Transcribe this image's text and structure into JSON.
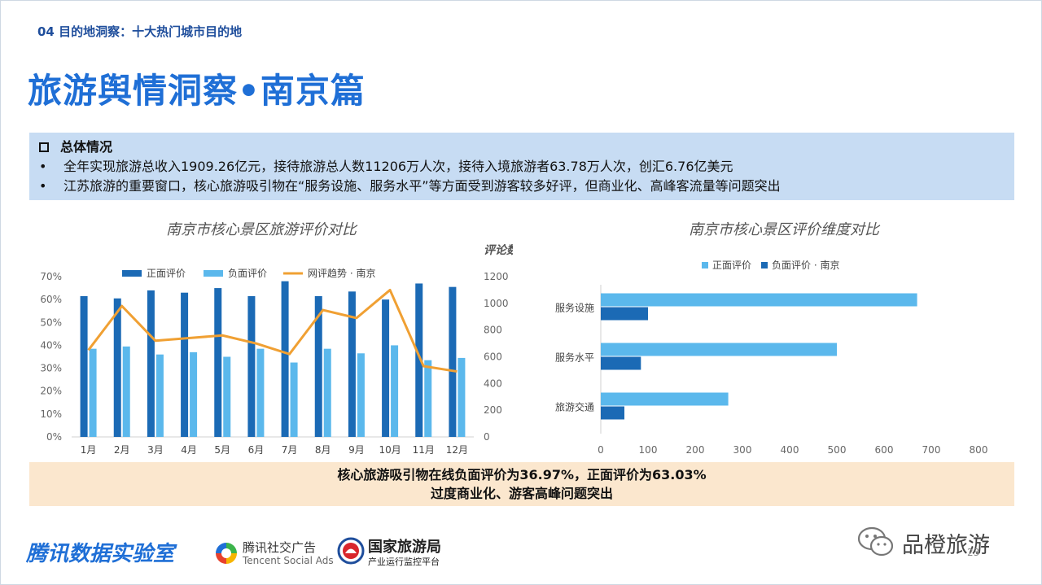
{
  "header": {
    "section_label": "04 目的地洞察：十大热门城市目的地",
    "title": "旅游舆情洞察•南京篇"
  },
  "summary": {
    "heading": "总体情况",
    "bullets": [
      "全年实现旅游总收入1909.26亿元，接待旅游总人数11206万人次，接待入境旅游者63.78万人次，创汇6.76亿美元",
      "江苏旅游的重要窗口，核心旅游吸引物在“服务设施、服务水平”等方面受到游客较多好评，但商业化、高峰客流量等问题突出"
    ]
  },
  "conclusion": {
    "line1": "核心旅游吸引物在线负面评价为36.97%，正面评价为63.03%",
    "line2": "过度商业化、游客高峰问题突出"
  },
  "footer": {
    "brand": "腾讯数据实验室",
    "tsa_cn": "腾讯社交广告",
    "tsa_en": "Tencent Social Ads",
    "cnta_cn": "国家旅游局",
    "cnta_sub": "产业运行监控平台",
    "wechat_name": "品橙旅游",
    "page_number": "23"
  },
  "colors": {
    "positive": "#1b6ab5",
    "negative": "#5bb8ec",
    "trend": "#f0a033",
    "bar_positive_h": "#5bb8ec",
    "bar_negative_h": "#1b6ab5"
  },
  "chart_data": [
    {
      "type": "bar",
      "title": "南京市核心景区旅游评价对比",
      "categories": [
        "1月",
        "2月",
        "3月",
        "4月",
        "5月",
        "6月",
        "7月",
        "8月",
        "9月",
        "10月",
        "11月",
        "12月"
      ],
      "series": [
        {
          "name": "正面评价",
          "axis": "left",
          "values": [
            61.5,
            60.5,
            64,
            63,
            65,
            61.5,
            68,
            61.5,
            63.5,
            60,
            67,
            65.5
          ]
        },
        {
          "name": "负面评价",
          "axis": "left",
          "values": [
            38.5,
            39.5,
            36,
            37,
            35,
            38.5,
            32.5,
            38.5,
            36.5,
            40,
            33.5,
            34.5
          ]
        },
        {
          "name": "网评趋势 · 南京",
          "axis": "right",
          "type": "line",
          "values": [
            650,
            980,
            720,
            740,
            760,
            700,
            620,
            950,
            890,
            1100,
            530,
            490
          ]
        }
      ],
      "yLeft": {
        "range": [
          0,
          70
        ],
        "ticks": [
          "0%",
          "10%",
          "20%",
          "30%",
          "40%",
          "50%",
          "60%",
          "70%"
        ]
      },
      "yRight": {
        "label": "评论数",
        "range": [
          0,
          1200
        ],
        "ticks": [
          "0",
          "200",
          "400",
          "600",
          "800",
          "1000",
          "1200"
        ]
      },
      "legend": "top"
    },
    {
      "type": "bar",
      "orientation": "horizontal",
      "title": "南京市核心景区评价维度对比",
      "categories": [
        "服务设施",
        "服务水平",
        "旅游交通"
      ],
      "series": [
        {
          "name": "正面评价",
          "values": [
            670,
            500,
            270
          ]
        },
        {
          "name": "负面评价 · 南京",
          "values": [
            100,
            85,
            50
          ]
        }
      ],
      "xaxis": {
        "range": [
          0,
          800
        ],
        "ticks": [
          "0",
          "100",
          "200",
          "300",
          "400",
          "500",
          "600",
          "700",
          "800"
        ]
      },
      "legend": "top"
    }
  ]
}
